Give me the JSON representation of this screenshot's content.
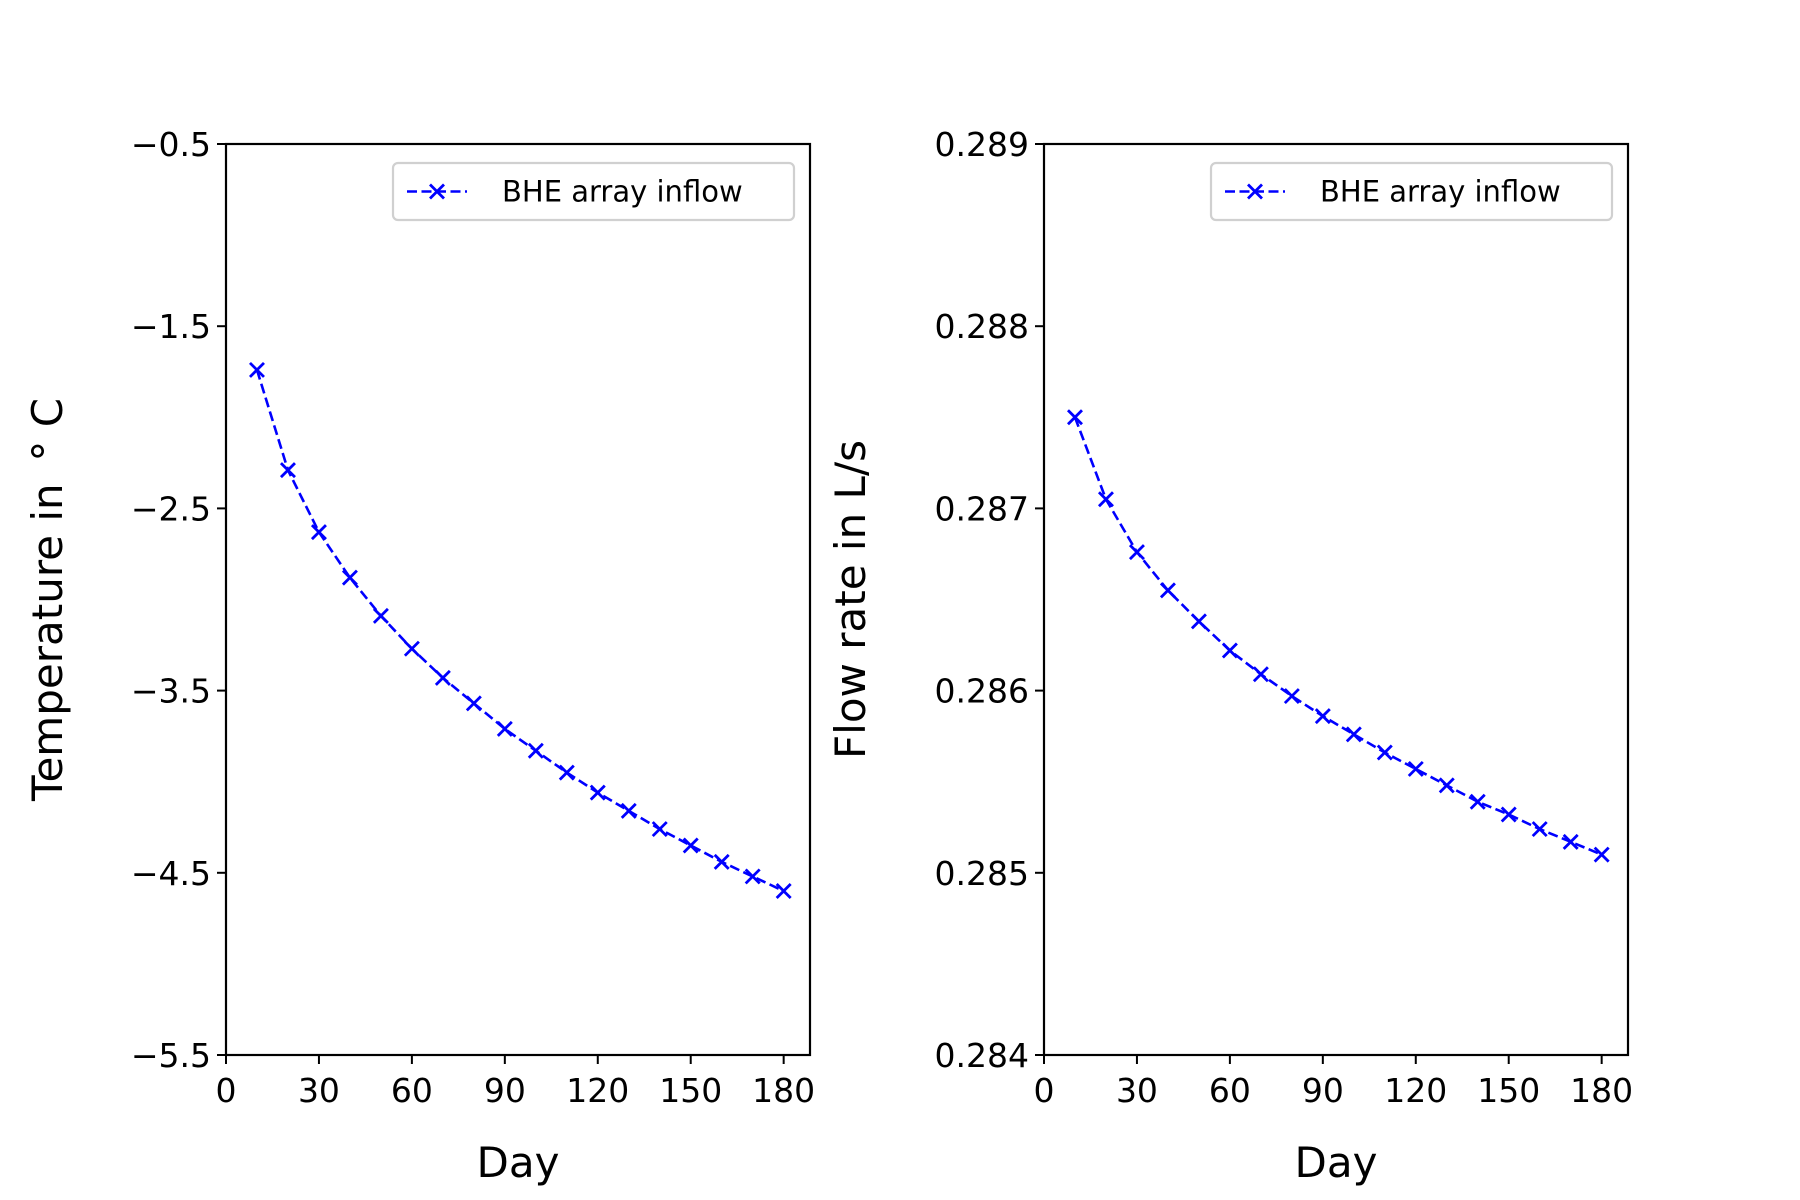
{
  "chart_data": [
    {
      "type": "line",
      "xlabel": "Day",
      "ylabel": "Temperature in $^\\circ$C",
      "ylabel_display": "Temperature in  ° C",
      "xlim": [
        0,
        188.5
      ],
      "ylim": [
        -5.5,
        -0.5
      ],
      "xticks": [
        0,
        30,
        60,
        90,
        120,
        150,
        180
      ],
      "yticks": [
        -0.5,
        -1.5,
        -2.5,
        -3.5,
        -4.5,
        -5.5
      ],
      "ytick_labels": [
        "−0.5",
        "−1.5",
        "−2.5",
        "−3.5",
        "−4.5",
        "−5.5"
      ],
      "grid": false,
      "legend_position": "top-right",
      "series": [
        {
          "name": "BHE array inflow",
          "color": "#0000ff",
          "linestyle": "dashed",
          "marker": "x",
          "x": [
            10,
            20,
            30,
            40,
            50,
            60,
            70,
            80,
            90,
            100,
            110,
            120,
            130,
            140,
            150,
            160,
            170,
            180
          ],
          "y": [
            -1.74,
            -2.29,
            -2.63,
            -2.88,
            -3.09,
            -3.27,
            -3.43,
            -3.57,
            -3.71,
            -3.83,
            -3.95,
            -4.06,
            -4.16,
            -4.26,
            -4.35,
            -4.44,
            -4.52,
            -4.6
          ]
        }
      ]
    },
    {
      "type": "line",
      "xlabel": "Day",
      "ylabel": "Flow rate in L/s",
      "xlim": [
        0,
        188.5
      ],
      "ylim": [
        0.284,
        0.289
      ],
      "xticks": [
        0,
        30,
        60,
        90,
        120,
        150,
        180
      ],
      "yticks": [
        0.289,
        0.288,
        0.287,
        0.286,
        0.285,
        0.284
      ],
      "ytick_labels": [
        "0.289",
        "0.288",
        "0.287",
        "0.286",
        "0.285",
        "0.284"
      ],
      "grid": false,
      "legend_position": "top-right",
      "series": [
        {
          "name": "BHE array inflow",
          "color": "#0000ff",
          "linestyle": "dashed",
          "marker": "x",
          "x": [
            10,
            20,
            30,
            40,
            50,
            60,
            70,
            80,
            90,
            100,
            110,
            120,
            130,
            140,
            150,
            160,
            170,
            180
          ],
          "y": [
            0.2875,
            0.28705,
            0.28676,
            0.28655,
            0.28638,
            0.28622,
            0.28609,
            0.28597,
            0.28586,
            0.28576,
            0.28566,
            0.28557,
            0.28548,
            0.28539,
            0.28532,
            0.28524,
            0.28517,
            0.2851
          ]
        }
      ]
    }
  ]
}
